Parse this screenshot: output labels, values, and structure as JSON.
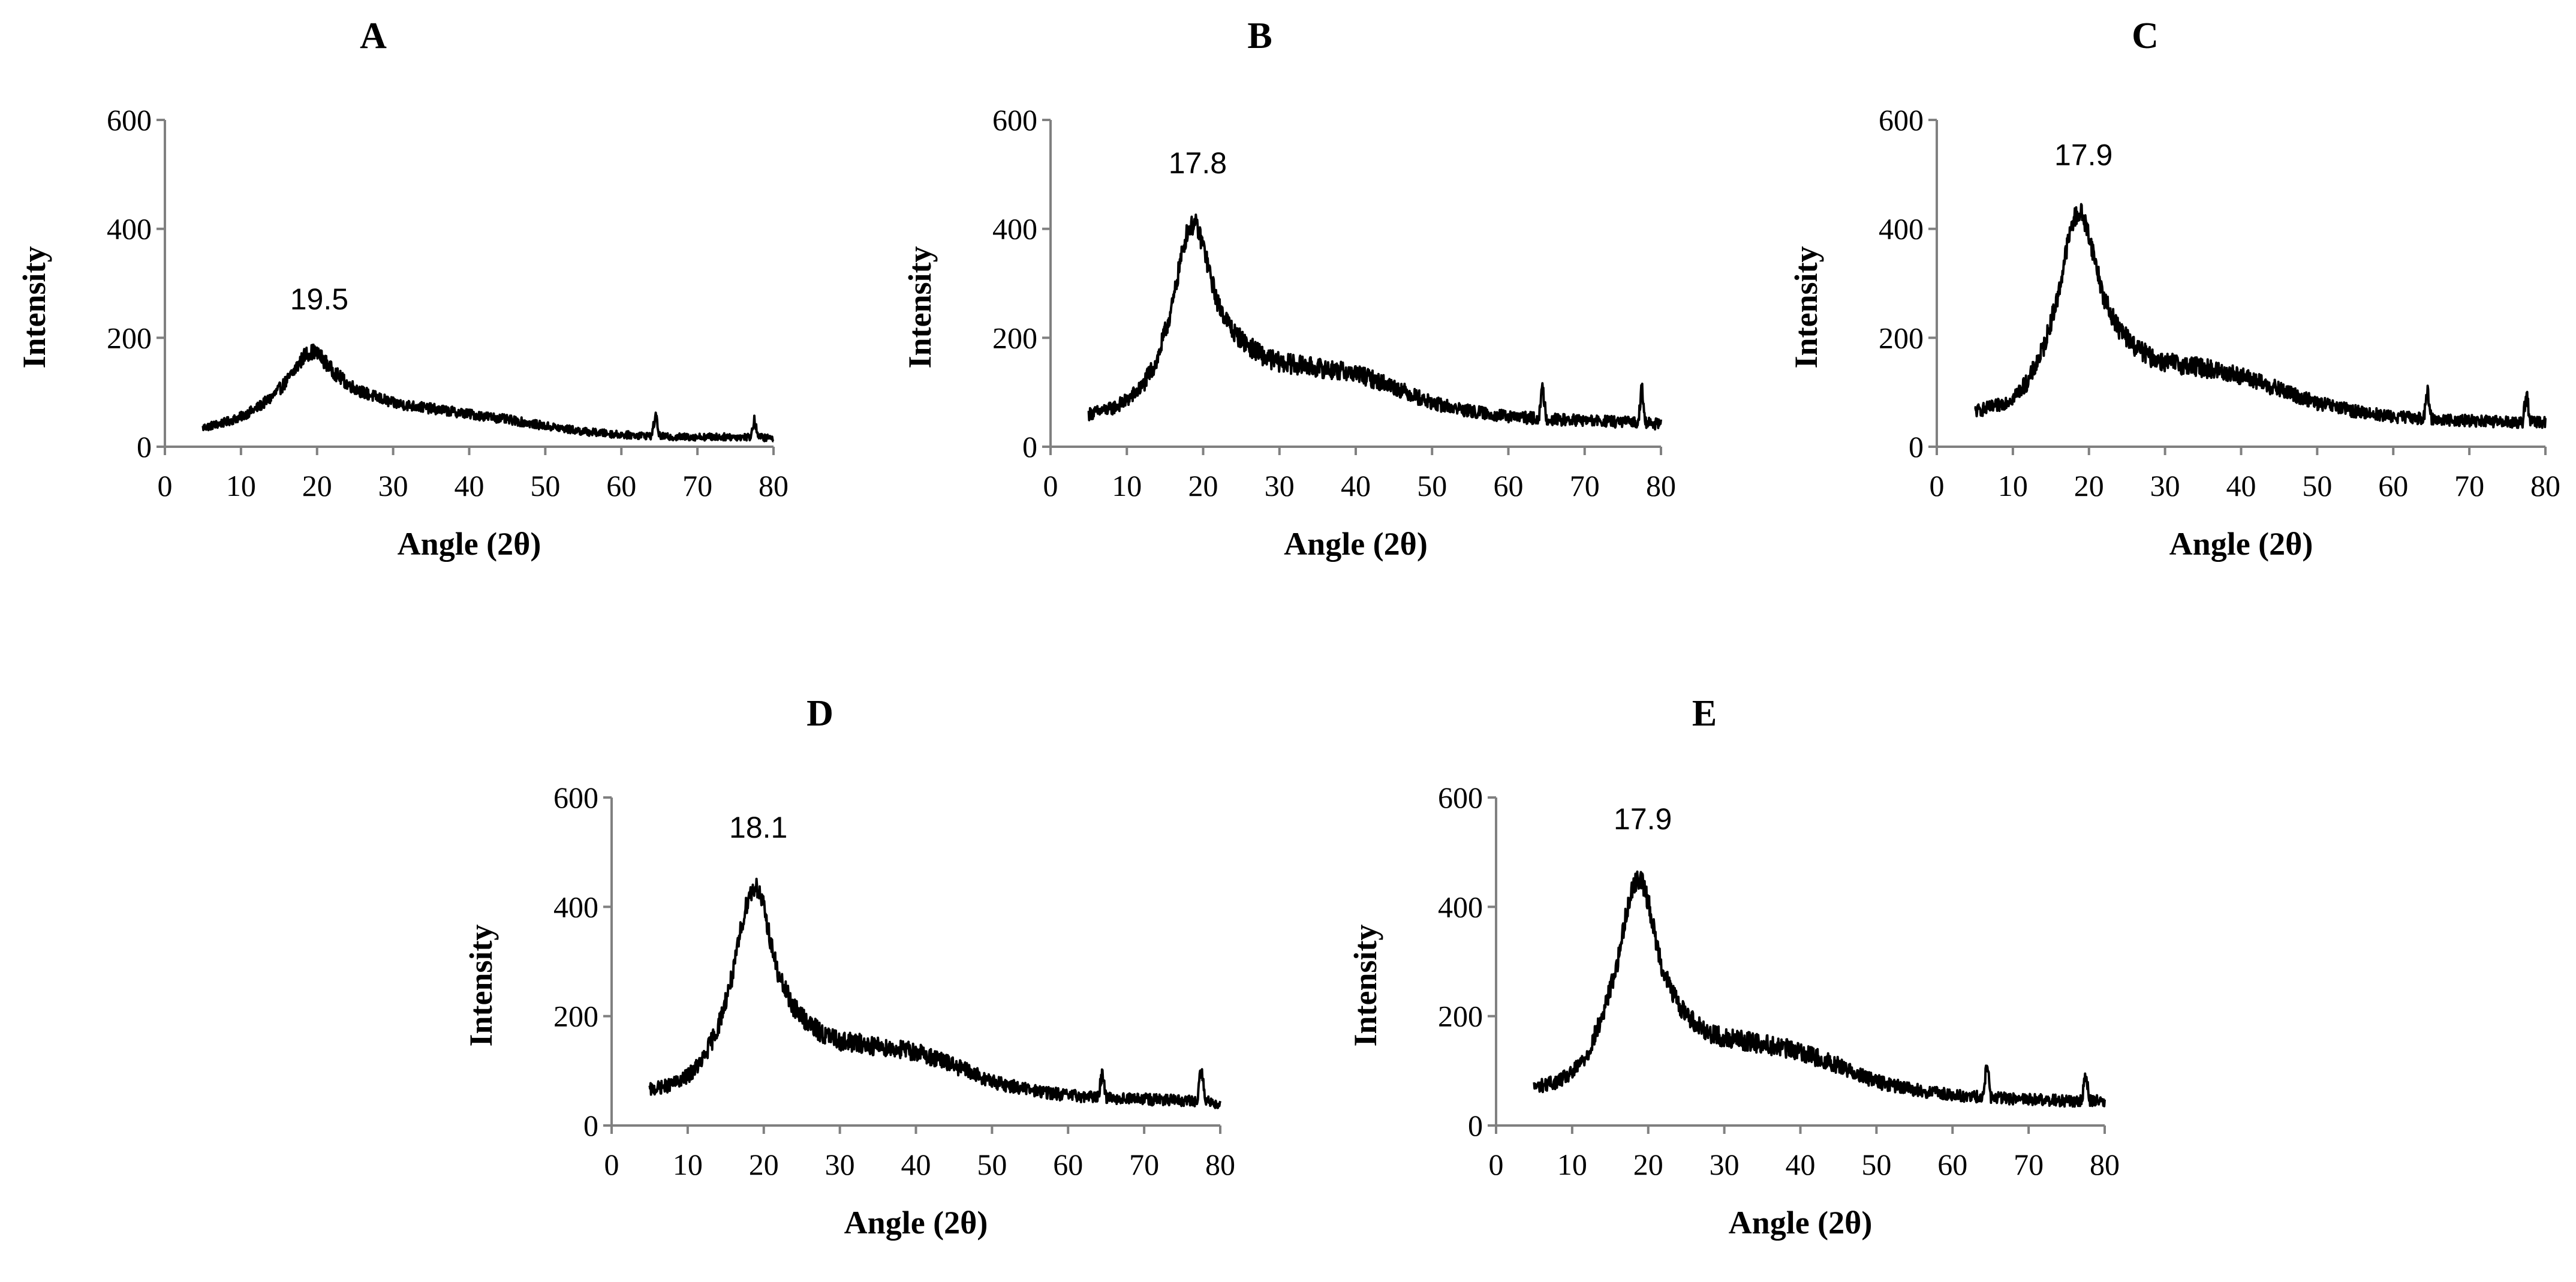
{
  "chart_data": [
    {
      "type": "line",
      "panel": "A",
      "title": "A",
      "xlabel": "Angle (2θ)",
      "ylabel": "Intensity",
      "xlim": [
        0,
        80
      ],
      "ylim": [
        0,
        600
      ],
      "xticks": [
        0,
        10,
        20,
        30,
        40,
        50,
        60,
        70,
        80
      ],
      "yticks": [
        0,
        200,
        400,
        600
      ],
      "x": [
        5,
        8,
        10,
        12,
        14,
        16,
        17.5,
        18.5,
        19.5,
        20.5,
        22,
        24,
        26,
        28,
        30,
        35,
        40,
        45,
        50,
        55,
        60,
        64,
        64.5,
        65,
        66,
        70,
        75,
        77,
        77.5,
        78,
        80
      ],
      "values": [
        35,
        45,
        55,
        70,
        90,
        120,
        150,
        170,
        175,
        165,
        140,
        115,
        100,
        90,
        80,
        70,
        60,
        50,
        38,
        28,
        22,
        20,
        60,
        20,
        18,
        18,
        18,
        18,
        50,
        18,
        15
      ],
      "noise": 14,
      "peak_annotation": {
        "label": "19.5",
        "x": 19.5,
        "y": 175
      }
    },
    {
      "type": "line",
      "panel": "B",
      "title": "B",
      "xlabel": "Angle (2θ)",
      "ylabel": "Intensity",
      "xlim": [
        0,
        80
      ],
      "ylim": [
        0,
        600
      ],
      "xticks": [
        0,
        10,
        20,
        30,
        40,
        50,
        60,
        70,
        80
      ],
      "yticks": [
        0,
        200,
        400,
        600
      ],
      "x": [
        5,
        8,
        10,
        12,
        14,
        16,
        17,
        18,
        19,
        20,
        21,
        22,
        24,
        26,
        28,
        30,
        35,
        40,
        45,
        50,
        55,
        60,
        64,
        64.5,
        65,
        66,
        70,
        75,
        77,
        77.5,
        78,
        80
      ],
      "values": [
        60,
        70,
        85,
        110,
        160,
        260,
        340,
        400,
        410,
        370,
        310,
        260,
        210,
        185,
        165,
        155,
        145,
        135,
        110,
        80,
        65,
        55,
        52,
        110,
        52,
        50,
        48,
        45,
        45,
        110,
        45,
        40
      ],
      "noise": 18,
      "peak_annotation": {
        "label": "17.8",
        "x": 18.5,
        "y": 425
      }
    },
    {
      "type": "line",
      "panel": "C",
      "title": "C",
      "xlabel": "Angle (2θ)",
      "ylabel": "Intensity",
      "xlim": [
        0,
        80
      ],
      "ylim": [
        0,
        600
      ],
      "xticks": [
        0,
        10,
        20,
        30,
        40,
        50,
        60,
        70,
        80
      ],
      "yticks": [
        0,
        200,
        400,
        600
      ],
      "x": [
        5,
        8,
        10,
        12,
        14,
        16,
        17,
        18,
        19,
        20,
        21,
        22,
        24,
        26,
        28,
        30,
        35,
        40,
        45,
        50,
        55,
        60,
        64,
        64.5,
        65,
        66,
        70,
        75,
        77,
        77.5,
        78,
        80
      ],
      "values": [
        65,
        75,
        90,
        120,
        180,
        280,
        360,
        420,
        430,
        390,
        330,
        270,
        215,
        185,
        165,
        155,
        145,
        130,
        105,
        80,
        65,
        55,
        52,
        100,
        52,
        50,
        48,
        45,
        45,
        100,
        45,
        45
      ],
      "noise": 18,
      "peak_annotation": {
        "label": "17.9",
        "x": 18.5,
        "y": 440
      }
    },
    {
      "type": "line",
      "panel": "D",
      "title": "D",
      "xlabel": "Angle (2θ)",
      "ylabel": "Intensity",
      "xlim": [
        0,
        80
      ],
      "ylim": [
        0,
        600
      ],
      "xticks": [
        0,
        10,
        20,
        30,
        40,
        50,
        60,
        70,
        80
      ],
      "yticks": [
        0,
        200,
        400,
        600
      ],
      "x": [
        5,
        8,
        10,
        12,
        14,
        16,
        17,
        18,
        19,
        20,
        21,
        22,
        24,
        26,
        28,
        30,
        35,
        40,
        45,
        50,
        55,
        60,
        64,
        64.5,
        65,
        66,
        70,
        75,
        77,
        77.5,
        78,
        80
      ],
      "values": [
        65,
        75,
        90,
        120,
        180,
        280,
        360,
        420,
        440,
        400,
        330,
        270,
        215,
        185,
        165,
        155,
        145,
        135,
        110,
        80,
        65,
        55,
        52,
        100,
        52,
        50,
        48,
        45,
        45,
        110,
        45,
        40
      ],
      "noise": 18,
      "peak_annotation": {
        "label": "18.1",
        "x": 18.5,
        "y": 450
      }
    },
    {
      "type": "line",
      "panel": "E",
      "title": "E",
      "xlabel": "Angle (2θ)",
      "ylabel": "Intensity",
      "xlim": [
        0,
        80
      ],
      "ylim": [
        0,
        600
      ],
      "xticks": [
        0,
        10,
        20,
        30,
        40,
        50,
        60,
        70,
        80
      ],
      "yticks": [
        0,
        200,
        400,
        600
      ],
      "x": [
        5,
        8,
        10,
        12,
        14,
        16,
        17,
        18,
        19,
        20,
        21,
        22,
        24,
        26,
        28,
        30,
        35,
        40,
        45,
        50,
        55,
        60,
        64,
        64.5,
        65,
        66,
        70,
        75,
        77,
        77.5,
        78,
        80
      ],
      "values": [
        70,
        80,
        95,
        130,
        200,
        300,
        380,
        440,
        455,
        410,
        340,
        280,
        220,
        190,
        170,
        160,
        150,
        135,
        110,
        80,
        65,
        55,
        52,
        120,
        52,
        50,
        48,
        45,
        45,
        100,
        45,
        45
      ],
      "noise": 18,
      "peak_annotation": {
        "label": "17.9",
        "x": 18.5,
        "y": 465
      }
    }
  ]
}
